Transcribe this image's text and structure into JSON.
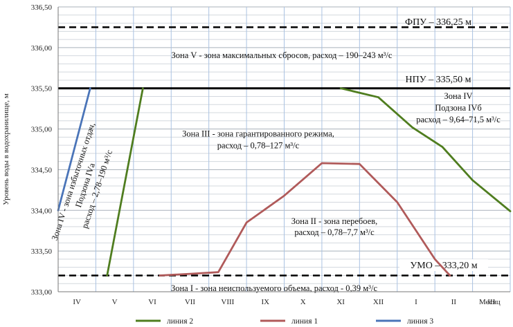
{
  "chart_data": {
    "type": "line",
    "ylabel": "Уровень воды в водохранилище, м",
    "xlabel": "Месяц",
    "ylim": [
      333.0,
      336.5
    ],
    "yticks": [
      "336,50",
      "336,00",
      "335,50",
      "335,00",
      "334,50",
      "334,00",
      "333,50",
      "333,00"
    ],
    "categories": [
      "IV",
      "V",
      "VI",
      "VII",
      "VIII",
      "IX",
      "X",
      "XI",
      "XII",
      "I",
      "II",
      "III"
    ],
    "reference_lines": [
      {
        "label": "ФПУ – 336,25 м",
        "value": 336.25,
        "style": "dashed"
      },
      {
        "label": "НПУ – 335,50 м",
        "value": 335.5,
        "style": "solid"
      },
      {
        "label": "УМО – 333,20 м",
        "value": 333.2,
        "style": "dashed"
      }
    ],
    "series": [
      {
        "name": "линия 2",
        "color": "#4f7d1f",
        "segments": [
          [
            [
              1.3,
              333.2
            ],
            [
              2.25,
              335.5
            ]
          ],
          [
            [
              7.5,
              335.5
            ],
            [
              8.5,
              335.39
            ],
            [
              9.4,
              335.02
            ],
            [
              10.2,
              334.78
            ],
            [
              11.0,
              334.37
            ],
            [
              12.0,
              333.99
            ]
          ]
        ]
      },
      {
        "name": "линия 1",
        "color": "#b05a5a",
        "segments": [
          [
            [
              2.7,
              333.2
            ],
            [
              3.5,
              333.22
            ],
            [
              4.25,
              333.24
            ],
            [
              5.0,
              333.85
            ],
            [
              6.0,
              334.18
            ],
            [
              7.0,
              334.58
            ],
            [
              8.0,
              334.57
            ],
            [
              9.0,
              334.1
            ],
            [
              10.0,
              333.4
            ],
            [
              10.4,
              333.2
            ]
          ]
        ]
      },
      {
        "name": "линия 3",
        "color": "#4a74b8",
        "segments": [
          [
            [
              0.0,
              334.0
            ],
            [
              0.85,
              335.5
            ]
          ]
        ]
      }
    ],
    "zones": [
      {
        "key": "z5",
        "lines": [
          "Зона V - зона максимальных сбросов, расход – 190–243 м³/с"
        ]
      },
      {
        "key": "z4b",
        "lines": [
          "Зона IV",
          "Подзона IVб",
          "расход – 9,64–71,5 м³/с"
        ]
      },
      {
        "key": "z3",
        "lines": [
          "Зона III - зона гарантированного режима,",
          "расход – 0,78–127 м³/с"
        ]
      },
      {
        "key": "z4a",
        "lines": [
          "Зона IV - зона избыточных отдач,",
          "Подзона IVа",
          "расход – 2,78–190 м³/с"
        ]
      },
      {
        "key": "z2",
        "lines": [
          "Зона II - зона перебоев,",
          "расход – 0,78–7,7 м³/с"
        ]
      },
      {
        "key": "z1",
        "lines": [
          "Зона I - зона неиспользуемого объема, расход - 0,39 м³/с"
        ]
      }
    ],
    "legend": [
      {
        "name": "линия 2",
        "color": "#4f7d1f"
      },
      {
        "name": "линия 1",
        "color": "#b05a5a"
      },
      {
        "name": "линия 3",
        "color": "#4a74b8"
      }
    ],
    "grid": true
  }
}
